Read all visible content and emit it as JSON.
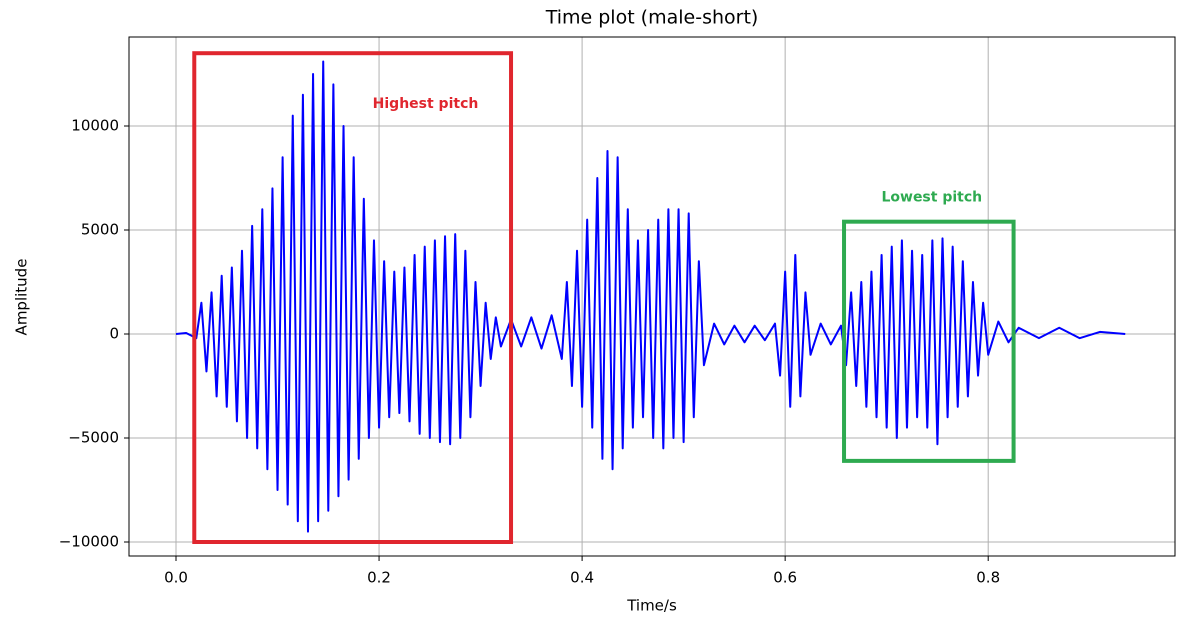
{
  "chart_data": {
    "type": "line",
    "title": "Time plot (male-short)",
    "xlabel": "Time/s",
    "ylabel": "Amplitude",
    "color": "#0000ff",
    "grid": true,
    "xlim": [
      -0.0463,
      0.984
    ],
    "ylim": [
      -10673,
      14279
    ],
    "xticks": [
      {
        "value": 0,
        "label": "0.0"
      },
      0.2,
      0.4,
      0.6,
      0.8
    ],
    "yticks": [
      {
        "value": -10000,
        "label": "−10000"
      },
      {
        "value": -5000,
        "label": "−5000"
      },
      0,
      5000,
      10000
    ],
    "x": [
      0,
      0.01,
      0.02,
      0.025,
      0.03,
      0.035,
      0.04,
      0.045,
      0.05,
      0.055,
      0.06,
      0.065,
      0.07,
      0.075,
      0.08,
      0.085,
      0.09,
      0.095,
      0.1,
      0.105,
      0.11,
      0.115,
      0.12,
      0.125,
      0.13,
      0.135,
      0.14,
      0.145,
      0.15,
      0.155,
      0.16,
      0.165,
      0.17,
      0.175,
      0.18,
      0.185,
      0.19,
      0.195,
      0.2,
      0.205,
      0.21,
      0.215,
      0.22,
      0.225,
      0.23,
      0.235,
      0.24,
      0.245,
      0.25,
      0.255,
      0.26,
      0.265,
      0.27,
      0.275,
      0.28,
      0.285,
      0.29,
      0.295,
      0.3,
      0.305,
      0.31,
      0.315,
      0.32,
      0.33,
      0.34,
      0.35,
      0.36,
      0.37,
      0.38,
      0.385,
      0.39,
      0.395,
      0.4,
      0.405,
      0.41,
      0.415,
      0.42,
      0.425,
      0.43,
      0.435,
      0.44,
      0.445,
      0.45,
      0.455,
      0.46,
      0.465,
      0.47,
      0.475,
      0.48,
      0.485,
      0.49,
      0.495,
      0.5,
      0.505,
      0.51,
      0.515,
      0.52,
      0.53,
      0.54,
      0.55,
      0.56,
      0.57,
      0.58,
      0.59,
      0.595,
      0.6,
      0.605,
      0.61,
      0.615,
      0.62,
      0.625,
      0.635,
      0.645,
      0.655,
      0.66,
      0.665,
      0.67,
      0.675,
      0.68,
      0.685,
      0.69,
      0.695,
      0.7,
      0.705,
      0.71,
      0.715,
      0.72,
      0.725,
      0.73,
      0.735,
      0.74,
      0.745,
      0.75,
      0.755,
      0.76,
      0.765,
      0.77,
      0.775,
      0.78,
      0.785,
      0.79,
      0.795,
      0.8,
      0.81,
      0.82,
      0.83,
      0.85,
      0.87,
      0.89,
      0.91,
      0.935
    ],
    "values": [
      0,
      50,
      -200,
      1500,
      -1800,
      2000,
      -3000,
      2800,
      -3500,
      3200,
      -4200,
      4000,
      -5000,
      5200,
      -5500,
      6000,
      -6500,
      7000,
      -7500,
      8500,
      -8200,
      10500,
      -9000,
      11500,
      -9500,
      12500,
      -9000,
      13100,
      -8500,
      12000,
      -7800,
      10000,
      -7000,
      8500,
      -6000,
      6500,
      -5000,
      4500,
      -4500,
      3500,
      -4000,
      3000,
      -3800,
      3200,
      -4200,
      3800,
      -4800,
      4200,
      -5000,
      4500,
      -5200,
      4700,
      -5300,
      4800,
      -5000,
      4000,
      -4000,
      2500,
      -2500,
      1500,
      -1200,
      800,
      -600,
      700,
      -600,
      800,
      -700,
      900,
      -1200,
      2500,
      -2500,
      4000,
      -3500,
      5500,
      -4500,
      7500,
      -6000,
      8800,
      -6500,
      8500,
      -5500,
      6000,
      -4500,
      4500,
      -4000,
      5000,
      -5000,
      5500,
      -5500,
      6000,
      -5000,
      6000,
      -5200,
      5800,
      -4000,
      3500,
      -1500,
      500,
      -500,
      400,
      -400,
      400,
      -300,
      500,
      -2000,
      3000,
      -3500,
      3800,
      -3000,
      2000,
      -1000,
      500,
      -500,
      400,
      -1500,
      2000,
      -2500,
      2500,
      -3500,
      3000,
      -4000,
      3800,
      -4500,
      4200,
      -5000,
      4500,
      -4500,
      4000,
      -4000,
      3800,
      -4500,
      4500,
      -5300,
      4600,
      -4000,
      4200,
      -3500,
      3500,
      -3000,
      2500,
      -2000,
      1500,
      -1000,
      600,
      -400,
      300,
      -200,
      300,
      -200,
      100,
      0
    ],
    "annotations": [
      {
        "text": "Highest pitch",
        "color": "#e0262e",
        "x": [
          0.018,
          0.33
        ],
        "y": [
          -10000,
          13500
        ]
      },
      {
        "text": "Lowest pitch",
        "color": "#2eaa50",
        "x": [
          0.658,
          0.825
        ],
        "y": [
          -6100,
          5400
        ]
      }
    ]
  }
}
